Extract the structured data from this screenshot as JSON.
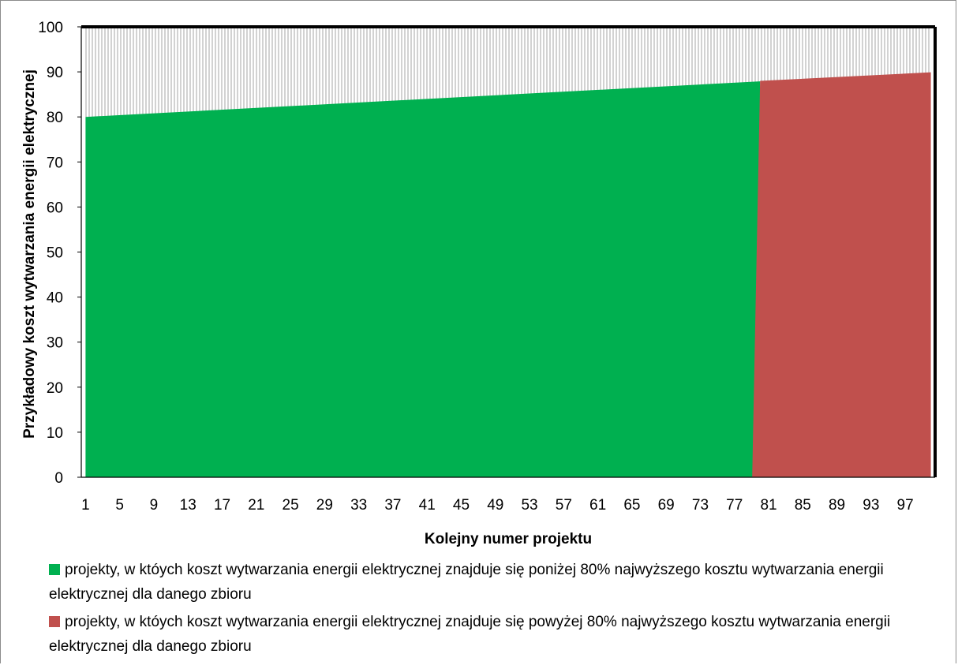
{
  "chart_data": {
    "type": "area",
    "xlabel": "Kolejny numer projektu",
    "ylabel": "Przykładowy koszt wytwarzania energii elektrycznej",
    "ylim": [
      0,
      100
    ],
    "yticks": [
      0,
      10,
      20,
      30,
      40,
      50,
      60,
      70,
      80,
      90,
      100
    ],
    "xlim": [
      1,
      100
    ],
    "xticks": [
      1,
      5,
      9,
      13,
      17,
      21,
      25,
      29,
      33,
      37,
      41,
      45,
      49,
      53,
      57,
      61,
      65,
      69,
      73,
      77,
      81,
      85,
      89,
      93,
      97
    ],
    "series": [
      {
        "name": "projekty, w któych koszt wytwarzania energii elektrycznej znajduje się poniżej 80% najwyższego kosztu wytwarzania energii elektrycznej dla danego zbioru",
        "color": "#00b050",
        "x": [
          1,
          80
        ],
        "values": [
          80,
          87.9
        ]
      },
      {
        "name": "projekty, w któych koszt wytwarzania energii elektrycznej znajduje się powyżej 80% najwyższego kosztu wytwarzania energii elektrycznej dla danego zbioru",
        "color": "#c0504d",
        "x": [
          81,
          100
        ],
        "values": [
          88.0,
          89.9
        ]
      },
      {
        "name": "",
        "color": "#a6a6a6",
        "pattern": "vertical-hatch",
        "x": [
          1,
          100
        ],
        "values": [
          100,
          100
        ]
      }
    ],
    "grid": false,
    "legend_position": "bottom"
  }
}
